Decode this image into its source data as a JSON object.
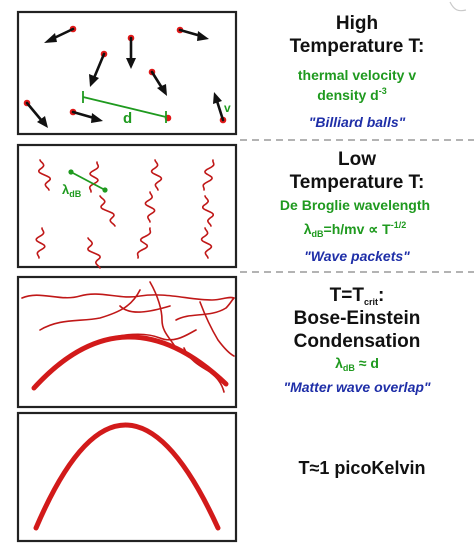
{
  "panels": {
    "high": {
      "heading_line1": "High",
      "heading_line2": "Temperature T:",
      "green_line1": "thermal velocity v",
      "green_line2_base": "density d",
      "green_line2_exp": "-3",
      "quote": "\"Billiard balls\"",
      "annot_d": "d",
      "annot_v": "v"
    },
    "low": {
      "heading_line1": "Low",
      "heading_line2": "Temperature T:",
      "green_line1": "De Broglie wavelength",
      "formula_lambda": "λ",
      "formula_sub": "dB",
      "formula_mid": "=h/mv ∝ T",
      "formula_exp": "-1/2",
      "quote": "\"Wave packets\"",
      "annot_lambda": "λ",
      "annot_sub": "dB"
    },
    "crit": {
      "heading_base": "T=T",
      "heading_sub": "crit",
      "heading_tail": ":",
      "line2": "Bose-Einstein",
      "line3": "Condensation",
      "formula_lambda": "λ",
      "formula_sub": "dB",
      "formula_tail": " ≈ d",
      "quote": "\"Matter wave overlap\""
    },
    "zero": {
      "label": "T≈1 picoKelvin"
    }
  },
  "colors": {
    "particle": "#e01818",
    "wave": "#c01818",
    "green_text": "#1f9a1f",
    "blue_text": "#1f2fa8"
  }
}
